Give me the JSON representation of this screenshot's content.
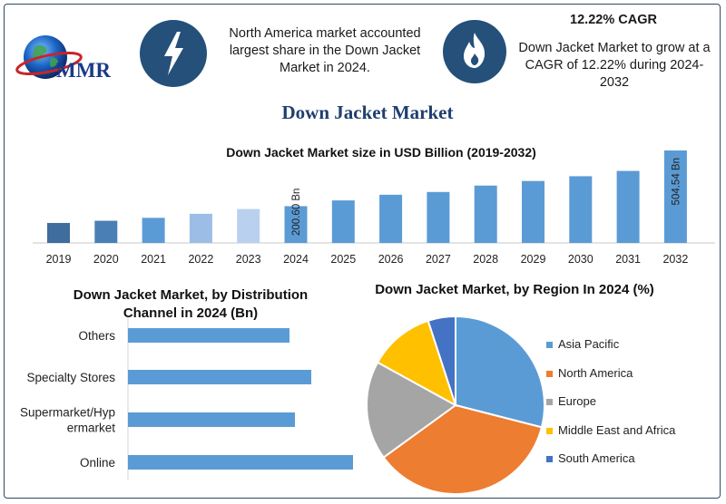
{
  "logo": {
    "text": "MMR"
  },
  "info1": {
    "text": "North America market accounted largest share in the Down Jacket Market in 2024."
  },
  "info2": {
    "heading": "12.22% CAGR",
    "text": "Down Jacket Market to grow at a CAGR of 12.22% during 2024-2032"
  },
  "main_title": "Down Jacket Market",
  "colors": {
    "frame": "#2f4a66",
    "bar": "#5b9bd5",
    "bar_dark": "#3d6c9f",
    "hbar": "#5b9bd5",
    "circle": "#24507a"
  },
  "chart_data": [
    {
      "type": "bar",
      "title": "Down Jacket Market size in USD Billion (2019-2032)",
      "categories": [
        "2019",
        "2020",
        "2021",
        "2022",
        "2023",
        "2024",
        "2025",
        "2026",
        "2027",
        "2028",
        "2029",
        "2030",
        "2031",
        "2032"
      ],
      "values": [
        109,
        121,
        137,
        159,
        185,
        200.6,
        232,
        263,
        278,
        313,
        338,
        364,
        393,
        504.54
      ],
      "bar_colors": [
        "#3f6d9d",
        "#4a7fb5",
        "#5b9bd5",
        "#9cbde6",
        "#b9d1ee",
        "#5b9bd5",
        "#5b9bd5",
        "#5b9bd5",
        "#5b9bd5",
        "#5b9bd5",
        "#5b9bd5",
        "#5b9bd5",
        "#5b9bd5",
        "#5b9bd5"
      ],
      "data_labels": {
        "2024": "200.60 Bn",
        "2032": "504.54 Bn"
      },
      "ylim": [
        0,
        504.54
      ],
      "grid": false
    },
    {
      "type": "bar",
      "orientation": "horizontal",
      "title": "Down Jacket Market, by Distribution Channel in 2024 (Bn)",
      "categories": [
        "Others",
        "Specialty Stores",
        "Supermarket/Hypermarket",
        "Online"
      ],
      "category_lines": [
        [
          "Others"
        ],
        [
          "Specialty Stores"
        ],
        [
          "Supermarket/Hyp",
          "ermarket"
        ],
        [
          "Online"
        ]
      ],
      "values": [
        178,
        202,
        184,
        248
      ],
      "xlim": [
        0,
        248
      ],
      "grid": false
    },
    {
      "type": "pie",
      "title": "Down Jacket Market, by Region In 2024 (%)",
      "labels": [
        "Asia Pacific",
        "North America",
        "Europe",
        "Middle East and Africa",
        "South America"
      ],
      "values": [
        29,
        36,
        18,
        12,
        5
      ],
      "colors": [
        "#5b9bd5",
        "#ed7d31",
        "#a5a5a5",
        "#ffc000",
        "#4472c4"
      ],
      "legend": "right"
    }
  ]
}
